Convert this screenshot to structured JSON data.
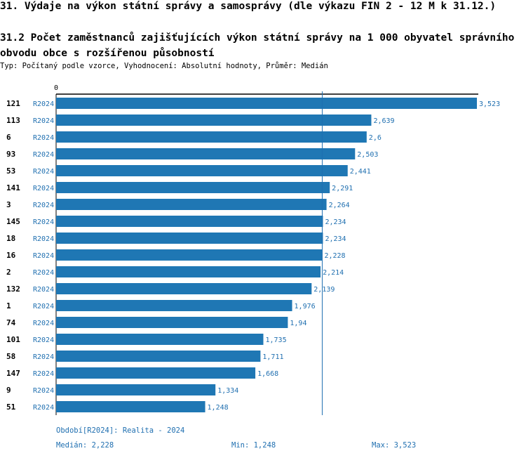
{
  "header": {
    "title": "31. Výdaje na výkon státní správy a samosprávy (dle výkazu FIN 2 - 12 M k 31.12.)",
    "subtitle": "31.2 Počet zaměstnanců zajišťujících výkon státní správy na 1 000 obyvatel správního obvodu obce s rozšířenou působností",
    "meta": "Typ: Počítaný podle vzorce, Vyhodnocení: Absolutní hodnoty, Průměr: Medián"
  },
  "colors": {
    "bar": "#1f77b4",
    "label": "#1f6fb0",
    "axis": "#000000",
    "median_line": "#1f6fb0"
  },
  "chart_data": {
    "type": "bar",
    "orientation": "horizontal",
    "x_tick_label": "0",
    "xlim": [
      0,
      3.523
    ],
    "median_line": 2.228,
    "categories": [
      "121",
      "113",
      "6",
      "93",
      "53",
      "141",
      "3",
      "145",
      "18",
      "16",
      "2",
      "132",
      "1",
      "74",
      "101",
      "58",
      "147",
      "9",
      "51"
    ],
    "series_labels": [
      "R2024",
      "R2024",
      "R2024",
      "R2024",
      "R2024",
      "R2024",
      "R2024",
      "R2024",
      "R2024",
      "R2024",
      "R2024",
      "R2024",
      "R2024",
      "R2024",
      "R2024",
      "R2024",
      "R2024",
      "R2024",
      "R2024"
    ],
    "values": [
      3.523,
      2.639,
      2.6,
      2.503,
      2.441,
      2.291,
      2.264,
      2.234,
      2.234,
      2.228,
      2.214,
      2.139,
      1.976,
      1.94,
      1.735,
      1.711,
      1.668,
      1.334,
      1.248
    ],
    "value_labels": [
      "3,523",
      "2,639",
      "2,6",
      "2,503",
      "2,441",
      "2,291",
      "2,264",
      "2,234",
      "2,234",
      "2,228",
      "2,214",
      "2,139",
      "1,976",
      "1,94",
      "1,735",
      "1,711",
      "1,668",
      "1,334",
      "1,248"
    ]
  },
  "footer": {
    "period": "Období[R2024]: Realita - 2024",
    "median": "Medián: 2,228",
    "min": "Min: 1,248",
    "max": "Max: 3,523"
  }
}
